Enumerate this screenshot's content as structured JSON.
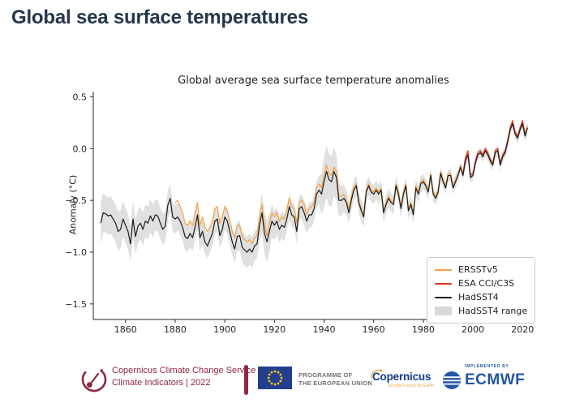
{
  "page": {
    "title": "Global sea surface temperatures"
  },
  "colors": {
    "title_navy": "#25374b",
    "ersst_orange": "#f5a142",
    "esa_red": "#e63323",
    "hadsst_black": "#1c1c1c",
    "band_gray": "#d8d8d8",
    "c3s_maroon": "#8f2741",
    "eu_blue": "#233e8f",
    "eu_star_yellow": "#ffcc00",
    "copernicus_blue": "#133c8b",
    "ecmwf_blue": "#2456a4"
  },
  "chart_data": {
    "type": "line",
    "title": "Global average sea surface temperature anomalies",
    "xlabel": "",
    "ylabel": "Anomaly (°C)",
    "xlim": [
      1847,
      2024.5
    ],
    "ylim": [
      -1.65,
      0.55
    ],
    "xticks": [
      1860,
      1880,
      1900,
      1920,
      1940,
      1960,
      1980,
      2000,
      2020
    ],
    "yticks": [
      0.5,
      0.0,
      -0.5,
      -1.0,
      -1.5
    ],
    "grid": false,
    "legend": {
      "position": "lower right",
      "entries": [
        {
          "label": "ERSSTv5",
          "swatch": "line",
          "color": "#f5a142"
        },
        {
          "label": "ESA CCI/C3S",
          "swatch": "line",
          "color": "#e63323"
        },
        {
          "label": "HadSST4",
          "swatch": "line",
          "color": "#1c1c1c"
        },
        {
          "label": "HadSST4 range",
          "swatch": "patch",
          "color": "#d8d8d8"
        }
      ]
    },
    "series": [
      {
        "name": "ERSSTv5",
        "color": "#f5a142",
        "width": 1.2,
        "start_year": 1880,
        "values": [
          -0.52,
          -0.5,
          -0.56,
          -0.62,
          -0.72,
          -0.74,
          -0.7,
          -0.74,
          -0.62,
          -0.52,
          -0.74,
          -0.66,
          -0.76,
          -0.8,
          -0.76,
          -0.7,
          -0.58,
          -0.56,
          -0.72,
          -0.66,
          -0.56,
          -0.6,
          -0.7,
          -0.8,
          -0.86,
          -0.74,
          -0.74,
          -0.85,
          -0.88,
          -0.9,
          -0.88,
          -0.92,
          -0.86,
          -0.84,
          -0.66,
          -0.54,
          -0.74,
          -0.84,
          -0.72,
          -0.62,
          -0.66,
          -0.62,
          -0.7,
          -0.66,
          -0.68,
          -0.6,
          -0.48,
          -0.56,
          -0.58,
          -0.72,
          -0.52,
          -0.5,
          -0.54,
          -0.64,
          -0.58,
          -0.56,
          -0.52,
          -0.38,
          -0.34,
          -0.38,
          -0.26,
          -0.16,
          -0.24,
          -0.26,
          -0.18,
          -0.22,
          -0.46,
          -0.46,
          -0.44,
          -0.5,
          -0.58,
          -0.46,
          -0.38,
          -0.34,
          -0.5,
          -0.58,
          -0.64,
          -0.4,
          -0.34,
          -0.4,
          -0.42,
          -0.38,
          -0.42,
          -0.38,
          -0.6,
          -0.52,
          -0.46,
          -0.5,
          -0.52,
          -0.34,
          -0.42,
          -0.56,
          -0.42,
          -0.34,
          -0.58,
          -0.52,
          -0.62,
          -0.36,
          -0.42,
          -0.32,
          -0.3,
          -0.34,
          -0.4,
          -0.24,
          -0.42,
          -0.46,
          -0.4,
          -0.22,
          -0.3,
          -0.36,
          -0.24,
          -0.24,
          -0.36,
          -0.3,
          -0.24,
          -0.16,
          -0.24,
          -0.1,
          -0.04,
          -0.26,
          -0.24,
          -0.12,
          -0.04,
          -0.02,
          -0.06,
          0.0,
          -0.04,
          -0.1,
          -0.14,
          -0.02,
          0.0,
          -0.14,
          -0.06,
          -0.02,
          0.08,
          0.2,
          0.26,
          0.16,
          0.12,
          0.2,
          0.26,
          0.14,
          0.22
        ]
      },
      {
        "name": "ESA CCI/C3S",
        "color": "#e63323",
        "width": 1.2,
        "start_year": 1996,
        "values": [
          -0.24,
          -0.08,
          -0.02,
          -0.26,
          -0.24,
          -0.12,
          -0.04,
          -0.02,
          -0.06,
          0.0,
          -0.04,
          -0.1,
          -0.14,
          -0.02,
          0.0,
          -0.14,
          -0.06,
          -0.02,
          0.08,
          0.2,
          0.27,
          0.16,
          0.12,
          0.2,
          0.27,
          0.14,
          0.2
        ]
      },
      {
        "name": "HadSST4",
        "color": "#1c1c1c",
        "width": 1.2,
        "start_year": 1850,
        "values": [
          -0.72,
          -0.62,
          -0.63,
          -0.65,
          -0.64,
          -0.68,
          -0.72,
          -0.8,
          -0.78,
          -0.68,
          -0.74,
          -0.8,
          -0.92,
          -0.68,
          -0.85,
          -0.75,
          -0.72,
          -0.78,
          -0.7,
          -0.72,
          -0.65,
          -0.7,
          -0.64,
          -0.65,
          -0.72,
          -0.78,
          -0.75,
          -0.55,
          -0.48,
          -0.66,
          -0.68,
          -0.66,
          -0.7,
          -0.76,
          -0.85,
          -0.87,
          -0.82,
          -0.86,
          -0.76,
          -0.64,
          -0.86,
          -0.8,
          -0.9,
          -0.94,
          -0.88,
          -0.82,
          -0.7,
          -0.68,
          -0.84,
          -0.78,
          -0.66,
          -0.7,
          -0.8,
          -0.9,
          -0.97,
          -0.85,
          -0.84,
          -0.95,
          -0.98,
          -1.0,
          -0.97,
          -1.0,
          -0.94,
          -0.92,
          -0.74,
          -0.62,
          -0.82,
          -0.9,
          -0.8,
          -0.7,
          -0.74,
          -0.7,
          -0.78,
          -0.74,
          -0.76,
          -0.68,
          -0.56,
          -0.64,
          -0.66,
          -0.8,
          -0.58,
          -0.56,
          -0.62,
          -0.7,
          -0.64,
          -0.64,
          -0.58,
          -0.44,
          -0.4,
          -0.44,
          -0.32,
          -0.22,
          -0.3,
          -0.32,
          -0.22,
          -0.28,
          -0.5,
          -0.5,
          -0.48,
          -0.52,
          -0.62,
          -0.5,
          -0.4,
          -0.36,
          -0.52,
          -0.6,
          -0.66,
          -0.42,
          -0.36,
          -0.42,
          -0.44,
          -0.4,
          -0.44,
          -0.4,
          -0.62,
          -0.54,
          -0.48,
          -0.52,
          -0.54,
          -0.36,
          -0.44,
          -0.58,
          -0.44,
          -0.36,
          -0.6,
          -0.54,
          -0.64,
          -0.38,
          -0.44,
          -0.34,
          -0.32,
          -0.36,
          -0.42,
          -0.26,
          -0.44,
          -0.48,
          -0.42,
          -0.24,
          -0.32,
          -0.38,
          -0.26,
          -0.26,
          -0.38,
          -0.32,
          -0.26,
          -0.18,
          -0.26,
          -0.12,
          -0.06,
          -0.28,
          -0.26,
          -0.14,
          -0.06,
          -0.04,
          -0.08,
          -0.02,
          -0.06,
          -0.12,
          -0.16,
          -0.04,
          -0.02,
          -0.16,
          -0.08,
          -0.04,
          0.06,
          0.18,
          0.24,
          0.14,
          0.1,
          0.18,
          0.24,
          0.12,
          0.2
        ]
      },
      {
        "name": "HadSST4 range",
        "band": true,
        "color": "#d8d8d8",
        "start_year": 1850,
        "halfwidth": [
          0.2,
          0.19,
          0.18,
          0.18,
          0.18,
          0.18,
          0.18,
          0.19,
          0.18,
          0.17,
          0.17,
          0.17,
          0.17,
          0.17,
          0.17,
          0.16,
          0.16,
          0.16,
          0.16,
          0.16,
          0.16,
          0.16,
          0.15,
          0.15,
          0.15,
          0.15,
          0.15,
          0.14,
          0.14,
          0.14,
          0.14,
          0.13,
          0.13,
          0.13,
          0.13,
          0.13,
          0.13,
          0.13,
          0.13,
          0.13,
          0.13,
          0.12,
          0.12,
          0.12,
          0.12,
          0.12,
          0.12,
          0.12,
          0.12,
          0.12,
          0.12,
          0.12,
          0.13,
          0.13,
          0.14,
          0.14,
          0.14,
          0.15,
          0.15,
          0.15,
          0.15,
          0.15,
          0.14,
          0.14,
          0.16,
          0.2,
          0.2,
          0.2,
          0.18,
          0.16,
          0.14,
          0.13,
          0.13,
          0.13,
          0.13,
          0.12,
          0.12,
          0.12,
          0.12,
          0.12,
          0.12,
          0.12,
          0.12,
          0.12,
          0.12,
          0.12,
          0.12,
          0.13,
          0.14,
          0.2,
          0.24,
          0.25,
          0.25,
          0.24,
          0.24,
          0.22,
          0.16,
          0.14,
          0.13,
          0.12,
          0.1,
          0.1,
          0.1,
          0.1,
          0.1,
          0.1,
          0.1,
          0.09,
          0.09,
          0.09,
          0.09,
          0.09,
          0.09,
          0.09,
          0.09,
          0.09,
          0.09,
          0.09,
          0.09,
          0.09,
          0.08,
          0.08,
          0.08,
          0.08,
          0.08,
          0.08,
          0.08,
          0.08,
          0.08,
          0.08,
          0.07,
          0.07,
          0.07,
          0.07,
          0.07,
          0.06,
          0.06,
          0.06,
          0.06,
          0.06,
          0.06,
          0.06,
          0.06,
          0.06,
          0.06,
          0.05,
          0.05,
          0.05,
          0.05,
          0.05,
          0.05,
          0.05,
          0.05,
          0.05,
          0.05,
          0.05,
          0.05,
          0.05,
          0.05,
          0.05,
          0.05,
          0.05,
          0.05,
          0.05,
          0.05,
          0.05,
          0.05,
          0.05,
          0.05,
          0.05,
          0.05,
          0.05,
          0.06
        ]
      }
    ]
  },
  "footer": {
    "c3s": {
      "line1": "Copernicus Climate Change Service",
      "line2": "Climate Indicators | 2022"
    },
    "eu": {
      "line1": "PROGRAMME OF",
      "line2": "THE EUROPEAN UNION"
    },
    "copernicus": {
      "name": "Copernicus",
      "tagline": "Europe's eyes on Earth"
    },
    "ecmwf": {
      "implemented_by": "IMPLEMENTED BY",
      "name": "ECMWF"
    }
  }
}
